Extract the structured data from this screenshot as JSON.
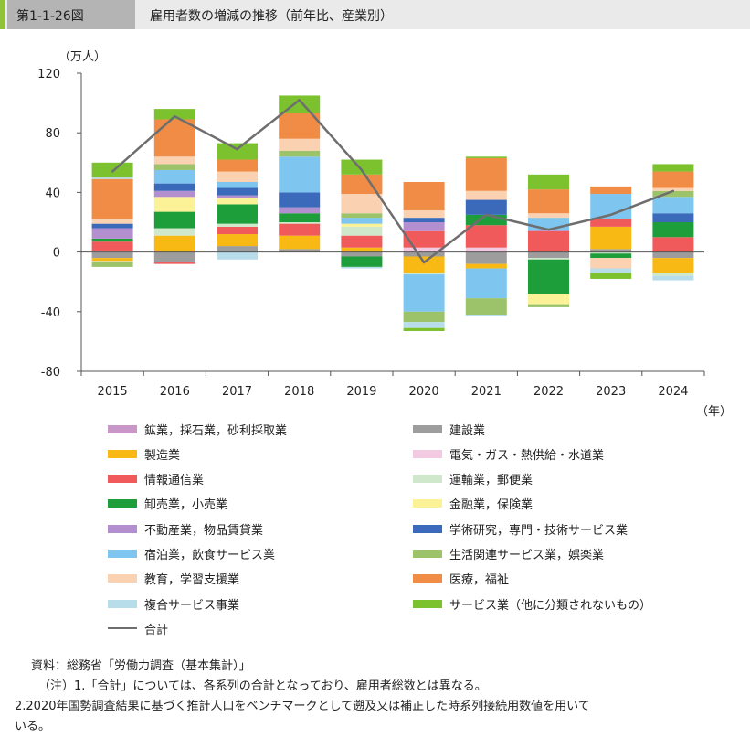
{
  "header": {
    "figure_number": "第1-1-26図",
    "figure_title": "雇用者数の増減の推移（前年比、産業別）"
  },
  "chart_data": {
    "type": "bar",
    "stacked": true,
    "ylabel": "（万人）",
    "xlabel": "（年）",
    "ylim": [
      -80,
      120
    ],
    "yticks": [
      120,
      80,
      40,
      0,
      -40,
      -80
    ],
    "categories": [
      "2015",
      "2016",
      "2017",
      "2018",
      "2019",
      "2020",
      "2021",
      "2022",
      "2023",
      "2024"
    ],
    "series": [
      {
        "name": "鉱業，採石業，砂利採取業",
        "color": "#c897c7",
        "values": [
          0,
          0,
          0,
          0,
          0,
          0,
          0,
          0,
          0,
          0
        ]
      },
      {
        "name": "建設業",
        "color": "#9d9d9d",
        "values": [
          -4,
          -7,
          4,
          2,
          -3,
          -3,
          -8,
          -4,
          2,
          -4
        ]
      },
      {
        "name": "製造業",
        "color": "#f8b914",
        "values": [
          -2,
          11,
          8,
          9,
          3,
          -11,
          -3,
          0,
          15,
          -10
        ]
      },
      {
        "name": "電気・ガス・熱供給・水道業",
        "color": "#f2cbe2",
        "values": [
          1,
          0,
          0,
          0,
          0,
          3,
          3,
          0,
          0,
          0
        ]
      },
      {
        "name": "情報通信業",
        "color": "#f05a5a",
        "values": [
          6,
          -1,
          5,
          8,
          8,
          11,
          15,
          14,
          5,
          10
        ]
      },
      {
        "name": "運輸業，郵便業",
        "color": "#cfe8cb",
        "values": [
          -1,
          5,
          2,
          1,
          6,
          -1,
          0,
          -1,
          -1,
          -2
        ]
      },
      {
        "name": "卸売業，小売業",
        "color": "#1e9e3b",
        "values": [
          2,
          11,
          13,
          6,
          -7,
          0,
          7,
          -23,
          -3,
          10
        ]
      },
      {
        "name": "金融業，保険業",
        "color": "#fbf196",
        "values": [
          0,
          10,
          4,
          0,
          2,
          0,
          0,
          -7,
          0,
          0
        ]
      },
      {
        "name": "不動産業，物品賃貸業",
        "color": "#b48fd0",
        "values": [
          7,
          4,
          2,
          4,
          0,
          6,
          0,
          1,
          0,
          0
        ]
      },
      {
        "name": "学術研究，専門・技術サービス業",
        "color": "#3a6ab9",
        "values": [
          3,
          5,
          5,
          10,
          0,
          3,
          10,
          0,
          0,
          6
        ]
      },
      {
        "name": "宿泊業，飲食サービス業",
        "color": "#7ec6f0",
        "values": [
          0,
          9,
          4,
          24,
          4,
          -25,
          -20,
          8,
          17,
          11
        ]
      },
      {
        "name": "生活関連サービス業，娯楽業",
        "color": "#9cc26a",
        "values": [
          -3,
          4,
          0,
          4,
          3,
          -7,
          -11,
          -2,
          0,
          4
        ]
      },
      {
        "name": "教育，学習支援業",
        "color": "#fad2b2",
        "values": [
          3,
          5,
          7,
          8,
          13,
          5,
          6,
          3,
          -7,
          2
        ]
      },
      {
        "name": "医療，福祉",
        "color": "#f08c46",
        "values": [
          27,
          25,
          8,
          17,
          13,
          19,
          22,
          16,
          5,
          11
        ]
      },
      {
        "name": "複合サービス事業",
        "color": "#b7dcea",
        "values": [
          1,
          0,
          -5,
          0,
          -1,
          -4,
          -1,
          0,
          -3,
          -3
        ]
      },
      {
        "name": "サービス業（他に分類されないもの）",
        "color": "#7cc12e",
        "values": [
          10,
          7,
          11,
          12,
          10,
          -2,
          1,
          10,
          -4,
          5
        ]
      }
    ],
    "total": {
      "name": "合計",
      "color": "#6e6e6e",
      "values": [
        54,
        91,
        69,
        102,
        55,
        -7,
        25,
        15,
        25,
        41
      ]
    },
    "grid": false,
    "legend_position": "bottom"
  },
  "notes": {
    "source": "資料：総務省「労働力調査（基本集計）」",
    "note1": "（注）1.「合計」については、各系列の合計となっており、雇用者総数とは異なる。",
    "note2": "2.2020年国勢調査結果に基づく推計人口をベンチマークとして遡及又は補正した時系列接続用数値を用いて",
    "note3": "いる。"
  }
}
